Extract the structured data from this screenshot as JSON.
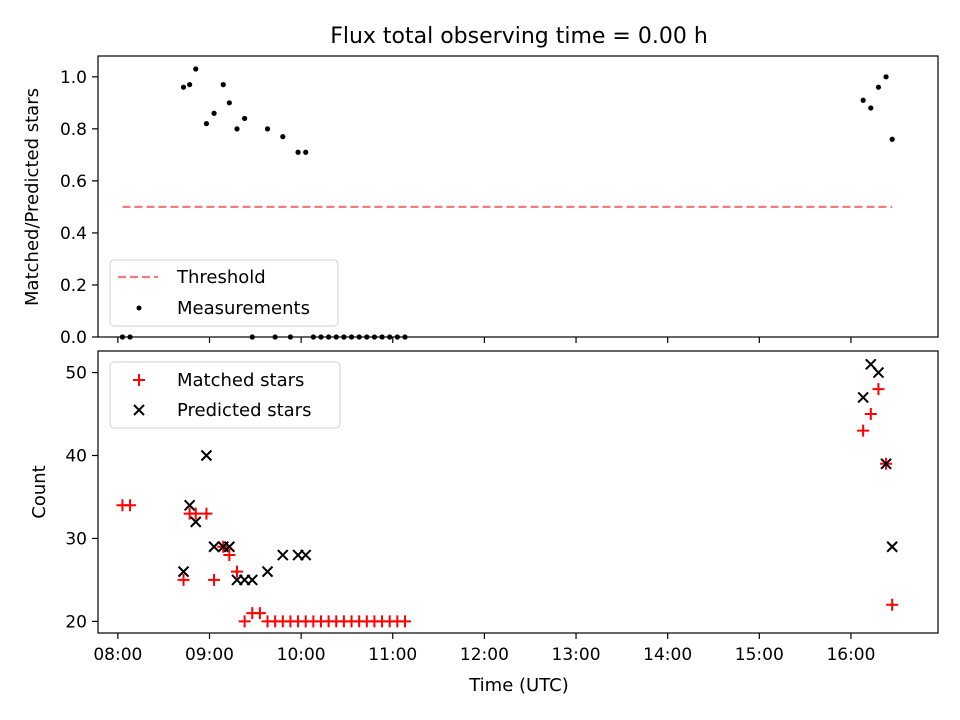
{
  "figure": {
    "title": "Flux total observing time = 0.00 h"
  },
  "chart_data": [
    {
      "type": "scatter",
      "title": "Flux total observing time = 0.00 h",
      "xlabel": "",
      "ylabel": "Matched/Predicted stars",
      "xlim": [
        "07:47",
        "16:57"
      ],
      "ylim": [
        0.0,
        1.08
      ],
      "yticks": [
        0.0,
        0.2,
        0.4,
        0.6,
        0.8,
        1.0
      ],
      "grid": false,
      "legend_position": "lower-left",
      "series": [
        {
          "name": "Threshold",
          "kind": "line",
          "style": "dashed",
          "color": "#f08080",
          "x": [
            "08:03",
            "16:27"
          ],
          "y": [
            0.5,
            0.5
          ]
        },
        {
          "name": "Measurements",
          "kind": "points",
          "marker": "dot",
          "color": "#000000",
          "x": [
            "08:03",
            "08:08",
            "08:43",
            "08:47",
            "08:51",
            "08:58",
            "09:03",
            "09:09",
            "09:13",
            "09:18",
            "09:23",
            "09:28",
            "09:38",
            "09:43",
            "09:48",
            "09:53",
            "09:58",
            "10:03",
            "10:08",
            "10:13",
            "10:18",
            "10:23",
            "10:28",
            "10:33",
            "10:38",
            "10:43",
            "10:48",
            "10:53",
            "10:58",
            "11:03",
            "11:08",
            "16:08",
            "16:13",
            "16:18",
            "16:23",
            "16:27"
          ],
          "y": [
            0.0,
            0.0,
            0.96,
            0.97,
            1.03,
            0.82,
            0.86,
            0.97,
            0.9,
            0.8,
            0.84,
            0.0,
            0.8,
            0.0,
            0.77,
            0.0,
            0.71,
            0.71,
            0.0,
            0.0,
            0.0,
            0.0,
            0.0,
            0.0,
            0.0,
            0.0,
            0.0,
            0.0,
            0.0,
            0.0,
            0.0,
            0.91,
            0.88,
            0.96,
            1.0,
            0.76
          ]
        }
      ]
    },
    {
      "type": "scatter",
      "title": "",
      "xlabel": "Time (UTC)",
      "ylabel": "Count",
      "xlim": [
        "07:47",
        "16:57"
      ],
      "ylim": [
        18.6,
        52.6
      ],
      "yticks": [
        20,
        30,
        40,
        50
      ],
      "xticks": [
        "08:00",
        "09:00",
        "10:00",
        "11:00",
        "12:00",
        "13:00",
        "14:00",
        "15:00",
        "16:00"
      ],
      "grid": false,
      "legend_position": "top-left",
      "series": [
        {
          "name": "Matched stars",
          "marker": "plus",
          "color": "#ff0000",
          "x": [
            "08:03",
            "08:08",
            "08:43",
            "08:47",
            "08:51",
            "08:58",
            "09:03",
            "09:09",
            "09:13",
            "09:18",
            "09:23",
            "09:28",
            "09:33",
            "09:38",
            "09:43",
            "09:48",
            "09:53",
            "09:58",
            "10:03",
            "10:08",
            "10:13",
            "10:18",
            "10:23",
            "10:28",
            "10:33",
            "10:38",
            "10:43",
            "10:48",
            "10:53",
            "10:58",
            "11:03",
            "11:08",
            "16:08",
            "16:13",
            "16:18",
            "16:23",
            "16:27"
          ],
          "y": [
            34,
            34,
            25,
            33,
            33,
            33,
            25,
            29,
            28,
            26,
            20,
            21,
            21,
            20,
            20,
            20,
            20,
            20,
            20,
            20,
            20,
            20,
            20,
            20,
            20,
            20,
            20,
            20,
            20,
            20,
            20,
            20,
            43,
            45,
            48,
            39,
            22
          ]
        },
        {
          "name": "Predicted stars",
          "marker": "x",
          "color": "#000000",
          "x": [
            "08:43",
            "08:47",
            "08:51",
            "08:58",
            "09:03",
            "09:09",
            "09:13",
            "09:18",
            "09:23",
            "09:28",
            "09:38",
            "09:48",
            "09:58",
            "10:03",
            "16:08",
            "16:13",
            "16:18",
            "16:23",
            "16:27"
          ],
          "y": [
            26,
            34,
            32,
            40,
            29,
            29,
            29,
            25,
            25,
            25,
            26,
            28,
            28,
            28,
            47,
            51,
            50,
            39,
            29
          ]
        }
      ]
    }
  ]
}
